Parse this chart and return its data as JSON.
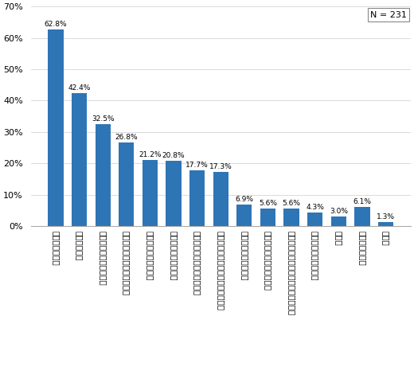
{
  "categories": [
    "元本保証がない",
    "手数料が高い",
    "運用実績がわかりにくい",
    "公社債に比べて安心できない",
    "利回りがもの足りない",
    "種類が多く選択に迷う",
    "株式に比べて面白さに欠ける",
    "情報が少ない購入後の運用に関する",
    "なんとなくなじめない",
    "購入手続き等わずらわしい",
    "銀行等の店舗がない近くに証券会社・",
    "クローズド期間がある",
    "その他",
    "よくわからない",
    "無回答"
  ],
  "values": [
    62.8,
    42.4,
    32.5,
    26.8,
    21.2,
    20.8,
    17.7,
    17.3,
    6.9,
    5.6,
    5.6,
    4.3,
    3.0,
    6.1,
    1.3
  ],
  "bar_color": "#2e75b6",
  "ylim": [
    0,
    70
  ],
  "yticks": [
    0,
    10,
    20,
    30,
    40,
    50,
    60,
    70
  ],
  "n_label": "N = 231",
  "background_color": "#ffffff"
}
